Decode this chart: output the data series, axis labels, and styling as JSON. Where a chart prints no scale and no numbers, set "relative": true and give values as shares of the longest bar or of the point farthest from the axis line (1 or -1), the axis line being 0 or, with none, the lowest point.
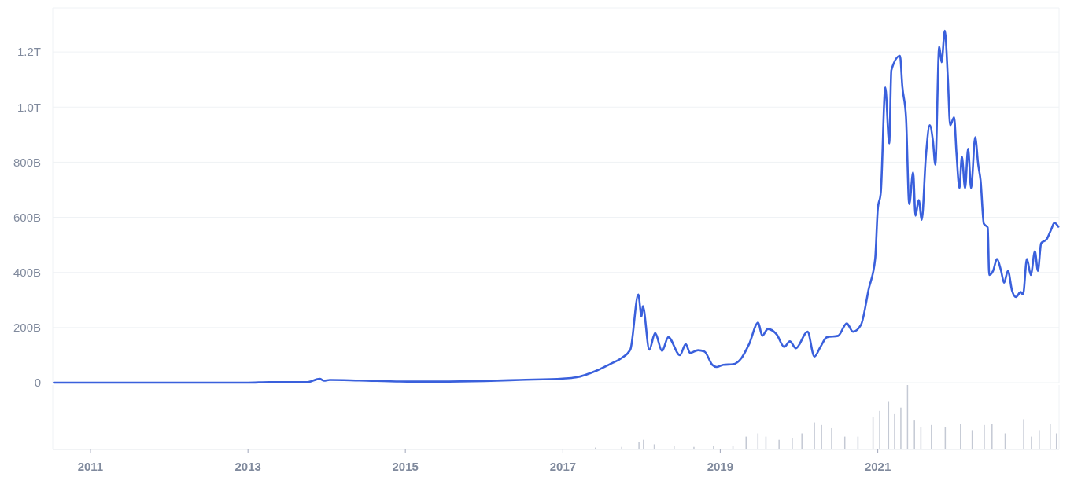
{
  "chart_data": [
    {
      "type": "line",
      "xlim": [
        "2010-07-10",
        "2023-04-22"
      ],
      "ylim": [
        0,
        1360000000000.0
      ],
      "yticks": [
        {
          "value": 0,
          "label": "0"
        },
        {
          "value": 200000000000.0,
          "label": "200B"
        },
        {
          "value": 400000000000.0,
          "label": "400B"
        },
        {
          "value": 600000000000.0,
          "label": "600B"
        },
        {
          "value": 800000000000.0,
          "label": "800B"
        },
        {
          "value": 1000000000000.0,
          "label": "1.0T"
        },
        {
          "value": 1200000000000.0,
          "label": "1.2T"
        }
      ],
      "grid": "y",
      "tick_labels": "y",
      "line_style": "solid",
      "series": [
        {
          "color": "#3a60dc",
          "x": [
            "2010-07-15",
            "2013-01-01",
            "2013-04-10",
            "2013-10-01",
            "2013-11-30",
            "2013-12-20",
            "2014-01-15",
            "2014-06-01",
            "2015-01-10",
            "2015-06-01",
            "2016-01-01",
            "2016-06-15",
            "2017-01-01",
            "2017-03-01",
            "2017-06-10",
            "2017-08-15",
            "2017-10-01",
            "2017-11-10",
            "2017-12-17",
            "2018-01-01",
            "2018-01-07",
            "2018-02-06",
            "2018-03-05",
            "2018-04-06",
            "2018-05-05",
            "2018-06-28",
            "2018-07-25",
            "2018-08-14",
            "2018-09-20",
            "2018-10-20",
            "2018-11-25",
            "2018-12-15",
            "2019-01-15",
            "2019-03-01",
            "2019-04-10",
            "2019-05-15",
            "2019-06-26",
            "2019-07-15",
            "2019-08-10",
            "2019-09-20",
            "2019-10-25",
            "2019-11-20",
            "2019-12-18",
            "2020-02-10",
            "2020-03-13",
            "2020-04-10",
            "2020-05-10",
            "2020-07-01",
            "2020-08-10",
            "2020-09-08",
            "2020-10-15",
            "2020-11-20",
            "2020-12-20",
            "2021-01-01",
            "2021-01-15",
            "2021-02-05",
            "2021-02-23",
            "2021-03-05",
            "2021-04-14",
            "2021-04-25",
            "2021-05-12",
            "2021-05-27",
            "2021-06-14",
            "2021-06-25",
            "2021-07-10",
            "2021-07-24",
            "2021-08-12",
            "2021-08-30",
            "2021-09-14",
            "2021-09-25",
            "2021-10-13",
            "2021-10-24",
            "2021-11-08",
            "2021-11-22",
            "2021-12-03",
            "2021-12-21",
            "2022-01-01",
            "2022-01-15",
            "2022-01-26",
            "2022-02-10",
            "2022-02-24",
            "2022-03-10",
            "2022-03-29",
            "2022-04-12",
            "2022-04-23",
            "2022-05-08",
            "2022-05-26",
            "2022-06-02",
            "2022-06-20",
            "2022-07-08",
            "2022-07-27",
            "2022-08-10",
            "2022-08-28",
            "2022-09-16",
            "2022-10-04",
            "2022-10-26",
            "2022-11-06",
            "2022-11-24",
            "2022-12-12",
            "2022-12-31",
            "2023-01-14",
            "2023-01-29",
            "2023-02-23",
            "2023-03-17",
            "2023-03-31",
            "2023-04-19"
          ],
          "values": [
            0,
            0,
            2000000000.0,
            2000000000.0,
            14000000000.0,
            7000000000.0,
            10000000000.0,
            8000000000.0,
            4000000000.0,
            4000000000.0,
            6000000000.0,
            10000000000.0,
            15000000000.0,
            19000000000.0,
            45000000000.0,
            70000000000.0,
            90000000000.0,
            120000000000.0,
            320000000000.0,
            240000000000.0,
            278000000000.0,
            120000000000.0,
            180000000000.0,
            115000000000.0,
            165000000000.0,
            100000000000.0,
            140000000000.0,
            108000000000.0,
            118000000000.0,
            113000000000.0,
            65000000000.0,
            57000000000.0,
            65000000000.0,
            67000000000.0,
            90000000000.0,
            140000000000.0,
            218000000000.0,
            170000000000.0,
            195000000000.0,
            175000000000.0,
            130000000000.0,
            150000000000.0,
            125000000000.0,
            185000000000.0,
            95000000000.0,
            130000000000.0,
            165000000000.0,
            170000000000.0,
            215000000000.0,
            185000000000.0,
            210000000000.0,
            340000000000.0,
            450000000000.0,
            630000000000.0,
            690000000000.0,
            1071000000000.0,
            868000000000.0,
            1134000000000.0,
            1186000000000.0,
            1074000000000.0,
            963000000000.0,
            648000000000.0,
            763000000000.0,
            606000000000.0,
            663000000000.0,
            591000000000.0,
            820000000000.0,
            934000000000.0,
            877000000000.0,
            791000000000.0,
            1220000000000.0,
            1163000000000.0,
            1277000000000.0,
            1106000000000.0,
            934000000000.0,
            963000000000.0,
            834000000000.0,
            706000000000.0,
            820000000000.0,
            706000000000.0,
            849000000000.0,
            706000000000.0,
            891000000000.0,
            791000000000.0,
            734000000000.0,
            577000000000.0,
            563000000000.0,
            391000000000.0,
            406000000000.0,
            449000000000.0,
            406000000000.0,
            363000000000.0,
            406000000000.0,
            334000000000.0,
            311000000000.0,
            329000000000.0,
            320000000000.0,
            449000000000.0,
            391000000000.0,
            477000000000.0,
            406000000000.0,
            506000000000.0,
            520000000000.0,
            557000000000.0,
            580000000000.0,
            566000000000.0
          ]
        }
      ]
    },
    {
      "type": "bar",
      "relative": true,
      "xlim": [
        "2010-07-10",
        "2023-04-22"
      ],
      "xticks": [
        "2011",
        "2013",
        "2015",
        "2017",
        "2019",
        "2021"
      ],
      "tick_labels": "x",
      "series": [
        {
          "color": "#c4c9d4",
          "x": [
            "2017-06-01",
            "2017-10-01",
            "2017-12-20",
            "2018-01-10",
            "2018-03-01",
            "2018-06-01",
            "2018-09-01",
            "2018-12-01",
            "2019-03-01",
            "2019-05-01",
            "2019-06-25",
            "2019-08-01",
            "2019-10-01",
            "2019-12-01",
            "2020-01-15",
            "2020-03-13",
            "2020-04-15",
            "2020-06-01",
            "2020-08-01",
            "2020-10-01",
            "2020-12-10",
            "2021-01-10",
            "2021-02-20",
            "2021-03-20",
            "2021-04-18",
            "2021-05-19",
            "2021-06-20",
            "2021-07-20",
            "2021-09-07",
            "2021-11-10",
            "2022-01-20",
            "2022-03-15",
            "2022-05-10",
            "2022-06-15",
            "2022-08-15",
            "2022-11-09",
            "2022-12-15",
            "2023-01-20",
            "2023-03-12",
            "2023-04-10"
          ],
          "values": [
            0.03,
            0.04,
            0.12,
            0.15,
            0.08,
            0.05,
            0.04,
            0.05,
            0.06,
            0.2,
            0.25,
            0.2,
            0.15,
            0.18,
            0.25,
            0.42,
            0.38,
            0.33,
            0.2,
            0.2,
            0.5,
            0.6,
            0.75,
            0.55,
            0.65,
            1,
            0.45,
            0.35,
            0.38,
            0.35,
            0.4,
            0.3,
            0.38,
            0.4,
            0.25,
            0.47,
            0.2,
            0.3,
            0.4,
            0.25
          ]
        }
      ]
    }
  ]
}
